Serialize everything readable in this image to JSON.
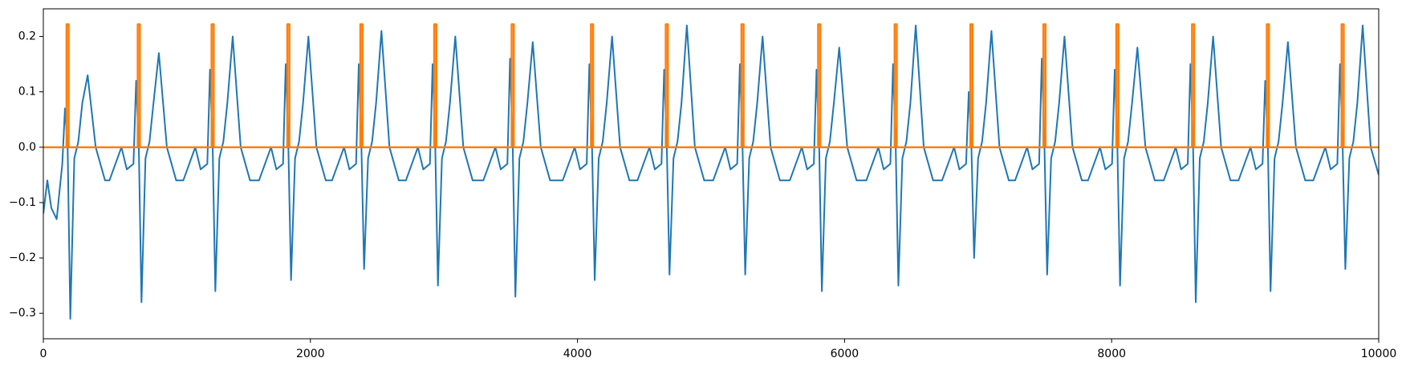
{
  "chart_data": {
    "type": "line",
    "xlim": [
      0,
      10000
    ],
    "xticks": [
      0,
      2000,
      4000,
      6000,
      8000,
      10000
    ],
    "ylim": [
      -0.346,
      0.25
    ],
    "yticks": [
      {
        "value": -0.3,
        "label": "−0.3"
      },
      {
        "value": -0.2,
        "label": "−0.2"
      },
      {
        "value": -0.1,
        "label": "−0.1"
      },
      {
        "value": 0,
        "label": "0.0"
      },
      0.1,
      0.2
    ],
    "series": [
      {
        "color": "#1f77b4",
        "x": [
          0,
          30,
          60,
          100,
          142,
          162,
          182,
          202,
          232,
          262,
          292,
          332,
          392,
          462,
          495,
          585,
          625,
          675,
          695,
          715,
          735,
          765,
          795,
          825,
          865,
          925,
          995,
          1048,
          1138,
          1178,
          1228,
          1248,
          1268,
          1288,
          1318,
          1348,
          1378,
          1418,
          1478,
          1548,
          1615,
          1705,
          1745,
          1795,
          1815,
          1835,
          1855,
          1885,
          1915,
          1945,
          1985,
          2045,
          2115,
          2162,
          2252,
          2292,
          2342,
          2362,
          2382,
          2402,
          2432,
          2462,
          2492,
          2532,
          2592,
          2662,
          2715,
          2805,
          2845,
          2895,
          2915,
          2935,
          2955,
          2985,
          3015,
          3045,
          3085,
          3145,
          3215,
          3295,
          3385,
          3425,
          3475,
          3495,
          3515,
          3535,
          3565,
          3595,
          3625,
          3665,
          3725,
          3795,
          3889,
          3979,
          4019,
          4069,
          4089,
          4109,
          4129,
          4159,
          4189,
          4219,
          4259,
          4319,
          4389,
          4449,
          4539,
          4579,
          4629,
          4649,
          4669,
          4689,
          4719,
          4749,
          4779,
          4819,
          4879,
          4949,
          5016,
          5106,
          5146,
          5196,
          5216,
          5236,
          5256,
          5286,
          5316,
          5346,
          5386,
          5446,
          5516,
          5590,
          5680,
          5720,
          5770,
          5790,
          5810,
          5830,
          5860,
          5890,
          5920,
          5960,
          6020,
          6090,
          6163,
          6253,
          6293,
          6343,
          6363,
          6383,
          6403,
          6433,
          6463,
          6493,
          6533,
          6593,
          6663,
          6730,
          6820,
          6860,
          6910,
          6930,
          6950,
          6970,
          7000,
          7030,
          7060,
          7100,
          7160,
          7230,
          7277,
          7367,
          7407,
          7457,
          7477,
          7497,
          7517,
          7547,
          7577,
          7607,
          7647,
          7707,
          7777,
          7823,
          7913,
          7953,
          8003,
          8023,
          8043,
          8063,
          8093,
          8123,
          8153,
          8193,
          8253,
          8323,
          8390,
          8480,
          8520,
          8570,
          8590,
          8610,
          8630,
          8660,
          8690,
          8720,
          8760,
          8820,
          8890,
          8950,
          9040,
          9080,
          9130,
          9150,
          9170,
          9190,
          9220,
          9250,
          9280,
          9320,
          9380,
          9450,
          9510,
          9600,
          9640,
          9690,
          9710,
          9730,
          9750,
          9780,
          9810,
          9840,
          9880,
          9940,
          10000
        ],
        "values": [
          -0.12,
          -0.06,
          -0.11,
          -0.13,
          -0.03,
          0.07,
          0.0,
          -0.31,
          -0.02,
          0.01,
          0.08,
          0.13,
          0.0,
          -0.06,
          -0.06,
          0.0,
          -0.04,
          -0.03,
          0.12,
          0.0,
          -0.28,
          -0.02,
          0.01,
          0.08,
          0.17,
          0.0,
          -0.06,
          -0.06,
          0.0,
          -0.04,
          -0.03,
          0.14,
          0.0,
          -0.26,
          -0.02,
          0.01,
          0.08,
          0.2,
          0.0,
          -0.06,
          -0.06,
          0.0,
          -0.04,
          -0.03,
          0.15,
          0.0,
          -0.24,
          -0.02,
          0.01,
          0.08,
          0.2,
          0.0,
          -0.06,
          -0.06,
          0.0,
          -0.04,
          -0.03,
          0.15,
          0.0,
          -0.22,
          -0.02,
          0.01,
          0.08,
          0.21,
          0.0,
          -0.06,
          -0.06,
          0.0,
          -0.04,
          -0.03,
          0.15,
          0.0,
          -0.25,
          -0.02,
          0.01,
          0.08,
          0.2,
          0.0,
          -0.06,
          -0.06,
          0.0,
          -0.04,
          -0.03,
          0.16,
          0.0,
          -0.27,
          -0.02,
          0.01,
          0.08,
          0.19,
          0.0,
          -0.06,
          -0.06,
          0.0,
          -0.04,
          -0.03,
          0.15,
          0.0,
          -0.24,
          -0.02,
          0.01,
          0.08,
          0.2,
          0.0,
          -0.06,
          -0.06,
          0.0,
          -0.04,
          -0.03,
          0.14,
          0.0,
          -0.23,
          -0.02,
          0.01,
          0.08,
          0.22,
          0.0,
          -0.06,
          -0.06,
          0.0,
          -0.04,
          -0.03,
          0.15,
          0.0,
          -0.23,
          -0.02,
          0.01,
          0.08,
          0.2,
          0.0,
          -0.06,
          -0.06,
          0.0,
          -0.04,
          -0.03,
          0.14,
          0.0,
          -0.26,
          -0.02,
          0.01,
          0.08,
          0.18,
          0.0,
          -0.06,
          -0.06,
          0.0,
          -0.04,
          -0.03,
          0.15,
          0.0,
          -0.25,
          -0.02,
          0.01,
          0.08,
          0.22,
          0.0,
          -0.06,
          -0.06,
          0.0,
          -0.04,
          -0.03,
          0.1,
          0.0,
          -0.2,
          -0.02,
          0.01,
          0.08,
          0.21,
          0.0,
          -0.06,
          -0.06,
          0.0,
          -0.04,
          -0.03,
          0.16,
          0.0,
          -0.23,
          -0.02,
          0.01,
          0.08,
          0.2,
          0.0,
          -0.06,
          -0.06,
          0.0,
          -0.04,
          -0.03,
          0.14,
          0.0,
          -0.25,
          -0.02,
          0.01,
          0.08,
          0.18,
          0.0,
          -0.06,
          -0.06,
          0.0,
          -0.04,
          -0.03,
          0.15,
          0.0,
          -0.28,
          -0.02,
          0.01,
          0.08,
          0.2,
          0.0,
          -0.06,
          -0.06,
          0.0,
          -0.04,
          -0.03,
          0.12,
          0.0,
          -0.26,
          -0.02,
          0.01,
          0.08,
          0.19,
          0.0,
          -0.06,
          -0.06,
          0.0,
          -0.04,
          -0.03,
          0.15,
          0.0,
          -0.22,
          -0.02,
          0.01,
          0.08,
          0.22,
          0.0,
          -0.05
        ]
      },
      {
        "color": "#ff7f0e",
        "x": [
          0,
          174,
          174,
          190,
          190,
          707,
          707,
          723,
          723,
          1260,
          1260,
          1276,
          1276,
          1827,
          1827,
          1843,
          1843,
          2374,
          2374,
          2390,
          2390,
          2927,
          2927,
          2943,
          2943,
          3507,
          3507,
          3523,
          3523,
          4101,
          4101,
          4117,
          4117,
          4661,
          4661,
          4677,
          4677,
          5228,
          5228,
          5244,
          5244,
          5802,
          5802,
          5818,
          5818,
          6375,
          6375,
          6391,
          6391,
          6942,
          6942,
          6958,
          6958,
          7489,
          7489,
          7505,
          7505,
          8035,
          8035,
          8051,
          8051,
          8602,
          8602,
          8618,
          8618,
          9162,
          9162,
          9178,
          9178,
          9722,
          9722,
          9738,
          9738,
          10000
        ],
        "values": [
          0,
          0,
          0.222,
          0.222,
          0,
          0,
          0.222,
          0.222,
          0,
          0,
          0.222,
          0.222,
          0,
          0,
          0.222,
          0.222,
          0,
          0,
          0.222,
          0.222,
          0,
          0,
          0.222,
          0.222,
          0,
          0,
          0.222,
          0.222,
          0,
          0,
          0.222,
          0.222,
          0,
          0,
          0.222,
          0.222,
          0,
          0,
          0.222,
          0.222,
          0,
          0,
          0.222,
          0.222,
          0,
          0,
          0.222,
          0.222,
          0,
          0,
          0.222,
          0.222,
          0,
          0,
          0.222,
          0.222,
          0,
          0,
          0.222,
          0.222,
          0,
          0,
          0.222,
          0.222,
          0,
          0,
          0.222,
          0.222,
          0,
          0,
          0.222,
          0.222,
          0,
          0
        ]
      }
    ]
  }
}
